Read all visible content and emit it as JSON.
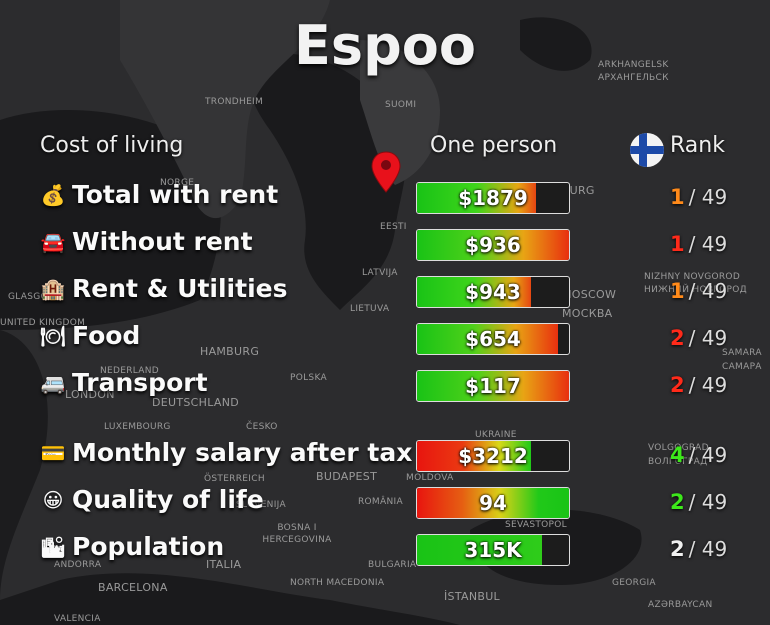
{
  "title": "Espoo",
  "headers": {
    "cost": "Cost of living",
    "person": "One person",
    "rank": "Rank"
  },
  "colors": {
    "orange": "#ff8a1a",
    "red": "#ff2a1a",
    "green": "#3de81b",
    "white": "#f0f0f0"
  },
  "rows": [
    {
      "icon": "money-bag-icon",
      "icon_char": "💰",
      "label": "Total with rent",
      "value": "$1879",
      "fill": 0.78,
      "rank": "1",
      "rank_of": "/ 49",
      "rank_color": "orange"
    },
    {
      "icon": "car-icon",
      "icon_char": "🚘",
      "label": "Without rent",
      "value": "$936",
      "fill": 1.0,
      "rank": "1",
      "rank_of": "/ 49",
      "rank_color": "red"
    },
    {
      "icon": "hotel-icon",
      "icon_char": "🏨",
      "label": "Rent & Utilities",
      "value": "$943",
      "fill": 0.75,
      "rank": "1",
      "rank_of": "/ 49",
      "rank_color": "orange"
    },
    {
      "icon": "plate-icon",
      "icon_char": "🍽",
      "label": "Food",
      "value": "$654",
      "fill": 0.93,
      "rank": "2",
      "rank_of": "/ 49",
      "rank_color": "red"
    },
    {
      "icon": "minibus-icon",
      "icon_char": "🚐",
      "label": "Transport",
      "value": "$117",
      "fill": 1.0,
      "rank": "2",
      "rank_of": "/ 49",
      "rank_color": "red"
    },
    {
      "icon": "credit-card-icon",
      "icon_char": "💳",
      "label": "Monthly salary after tax",
      "value": "$3212",
      "fill": 0.75,
      "rank": "4",
      "rank_of": "/ 49",
      "rank_color": "green"
    },
    {
      "icon": "smiley-icon",
      "icon_char": "😀",
      "label": "Quality of life",
      "value": "94",
      "fill": 1.0,
      "rank": "2",
      "rank_of": "/ 49",
      "rank_color": "green"
    },
    {
      "icon": "city-chart-icon",
      "icon_char": "🏙",
      "label": "Population",
      "value": "315K",
      "fill": 0.82,
      "rank": "2",
      "rank_of": "/ 49",
      "rank_color": "white"
    }
  ],
  "map_labels": [
    "ARKHANGELSK",
    "АРХАНГЕЛЬСК",
    "TRONDHEIM",
    "SUOMI",
    "NORGE",
    "EESTI",
    "ST PETERSBURG",
    "LATVIJA",
    "NIZHNY NOVGOROD",
    "НИЖНИЙ НОВГОРОД",
    "GLASGOW",
    "MOSCOW",
    "МОСКВА",
    "LIETUVA",
    "UNITED KINGDOM",
    "HAMBURG",
    "NEDERLAND",
    "SAMARA",
    "САМАРА",
    "LONDON",
    "POLSKA",
    "DEUTSCHLAND",
    "LUXEMBOURG",
    "ČESKO",
    "UKRAINE",
    "VOLGOGRAD",
    "ВОЛГОГРАД",
    "ÖSTERREICH",
    "BUDAPEST",
    "MOLDOVA",
    "ROMÂNIA",
    "SLOVENIJA",
    "BOSNA I HERCEGOVINA",
    "SEVASTOPOL",
    "ANDORRA",
    "ITALIA",
    "BULGARIA",
    "BARCELONA",
    "NORTH MACEDONIA",
    "GEORGIA",
    "İSTANBUL",
    "AZƏRBAYCAN",
    "VALENCIA"
  ]
}
